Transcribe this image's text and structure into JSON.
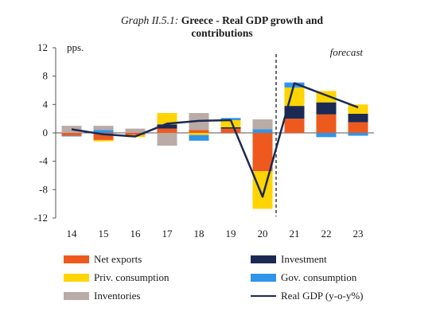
{
  "title": {
    "prefix": "Graph II.5.1:",
    "text_line1": "Greece - Real GDP growth and",
    "text_line2": "contributions"
  },
  "chart_data": {
    "type": "bar",
    "stacked": true,
    "categories": [
      "14",
      "15",
      "16",
      "17",
      "18",
      "19",
      "20",
      "21",
      "22",
      "23"
    ],
    "yunit": "pps.",
    "ylim": [
      -12,
      12
    ],
    "yticks": [
      -12,
      -8,
      -4,
      0,
      4,
      8,
      12
    ],
    "forecast_label": "forecast",
    "forecast_start_index": 7,
    "series": [
      {
        "name": "Net exports",
        "color": "#ee5a1e",
        "values": [
          -0.4,
          -1.0,
          -0.3,
          0.6,
          0.4,
          0.6,
          -5.4,
          2.0,
          2.6,
          1.5
        ]
      },
      {
        "name": "Investment",
        "color": "#1b2a52",
        "values": [
          0.0,
          0.0,
          0.0,
          0.6,
          0.0,
          0.2,
          0.0,
          1.8,
          1.7,
          1.2
        ]
      },
      {
        "name": "Priv. consumption",
        "color": "#ffd400",
        "values": [
          0.0,
          -0.2,
          -0.3,
          1.6,
          -0.3,
          1.0,
          -5.3,
          2.6,
          1.6,
          1.3
        ]
      },
      {
        "name": "Gov. consumption",
        "color": "#2f95e9",
        "values": [
          -0.1,
          0.4,
          0.0,
          0.0,
          -0.8,
          0.3,
          0.5,
          0.7,
          -0.6,
          -0.4
        ]
      },
      {
        "name": "Inventories",
        "color": "#b9aba6",
        "values": [
          1.0,
          0.6,
          0.6,
          -1.8,
          2.4,
          0.0,
          1.4,
          0.0,
          0.0,
          0.0
        ]
      }
    ],
    "line": {
      "name": "Real GDP (y-o-y%)",
      "color": "#1b2a52",
      "values": [
        0.5,
        -0.2,
        -0.5,
        1.3,
        1.7,
        1.8,
        -9.0,
        7.0,
        5.3,
        3.6
      ]
    }
  }
}
